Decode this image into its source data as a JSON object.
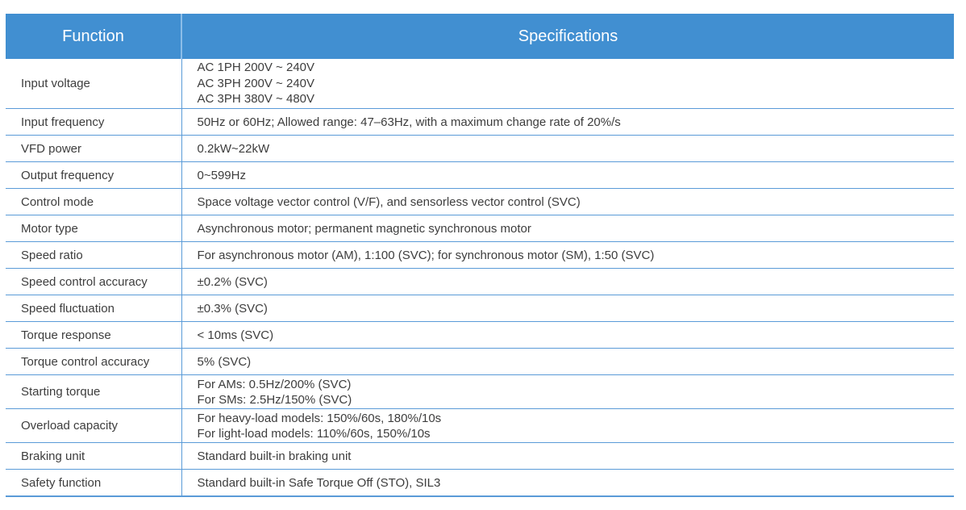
{
  "header": {
    "function": "Function",
    "specifications": "Specifications"
  },
  "header_color": "#418fd1",
  "rows": [
    {
      "function": "Input voltage",
      "spec": [
        "AC 1PH 200V ~ 240V",
        "AC 3PH 200V ~ 240V",
        "AC 3PH 380V ~ 480V"
      ]
    },
    {
      "function": "Input frequency",
      "spec": [
        "50Hz or 60Hz; Allowed range: 47–63Hz, with a maximum change rate of 20%/s"
      ]
    },
    {
      "function": "VFD power",
      "spec": [
        "0.2kW~22kW"
      ]
    },
    {
      "function": "Output frequency",
      "spec": [
        "0~599Hz"
      ]
    },
    {
      "function": "Control mode",
      "spec": [
        "Space voltage vector control (V/F), and sensorless vector control (SVC)"
      ]
    },
    {
      "function": "Motor type",
      "spec": [
        "Asynchronous motor; permanent magnetic synchronous motor"
      ]
    },
    {
      "function": "Speed ratio",
      "spec": [
        "For asynchronous motor (AM), 1:100 (SVC); for synchronous motor (SM), 1:50 (SVC)"
      ]
    },
    {
      "function": "Speed control accuracy",
      "spec": [
        "±0.2% (SVC)"
      ]
    },
    {
      "function": "Speed fluctuation",
      "spec": [
        "±0.3% (SVC)"
      ]
    },
    {
      "function": "Torque response",
      "spec": [
        "< 10ms (SVC)"
      ]
    },
    {
      "function": "Torque control accuracy",
      "spec": [
        "5% (SVC)"
      ]
    },
    {
      "function": "Starting torque",
      "spec": [
        "For AMs: 0.5Hz/200% (SVC)",
        "For SMs: 2.5Hz/150% (SVC)"
      ]
    },
    {
      "function": "Overload capacity",
      "spec": [
        "For heavy-load models: 150%/60s, 180%/10s",
        "For light-load models: 110%/60s, 150%/10s"
      ]
    },
    {
      "function": "Braking unit",
      "spec": [
        "Standard built-in braking unit"
      ]
    },
    {
      "function": "Safety function",
      "spec": [
        "Standard built-in Safe Torque Off (STO), SIL3"
      ]
    }
  ]
}
